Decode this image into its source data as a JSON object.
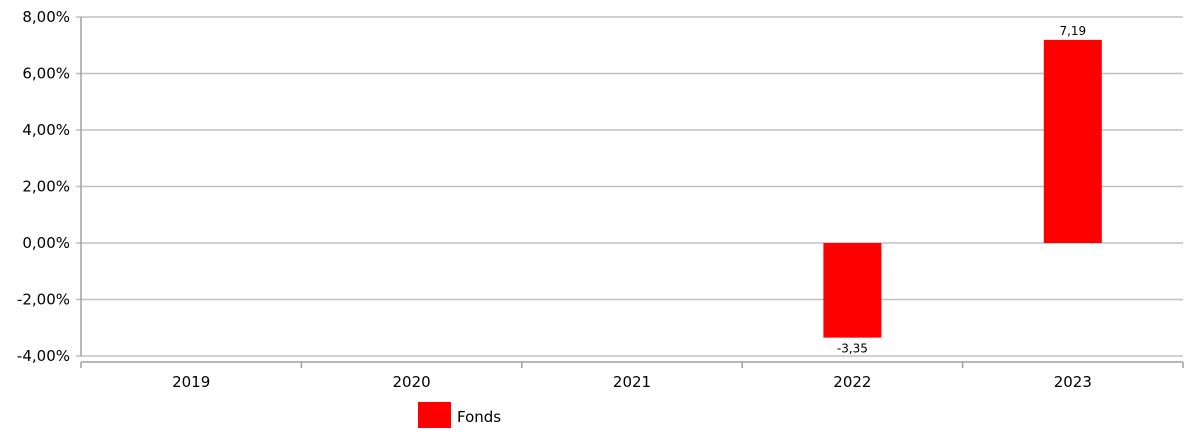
{
  "chart_data": {
    "type": "bar",
    "categories": [
      "2019",
      "2020",
      "2021",
      "2022",
      "2023"
    ],
    "series": [
      {
        "name": "Fonds",
        "values": [
          null,
          null,
          null,
          -3.35,
          7.19
        ],
        "data_labels": [
          "",
          "",
          "",
          "-3,35",
          "7,19"
        ],
        "color": "#ff0000"
      }
    ],
    "ylim": [
      -4,
      8
    ],
    "yticks": [
      8,
      6,
      4,
      2,
      0,
      -2,
      -4
    ],
    "ytick_labels": [
      "8,00%",
      "6,00%",
      "4,00%",
      "2,00%",
      "0,00%",
      "-2,00%",
      "-4,00%"
    ],
    "grid": true,
    "legend": {
      "position": "bottom-left",
      "entries": [
        "Fonds"
      ]
    },
    "colors": {
      "bar": "#ff0000",
      "grid": "#c0c0c0",
      "axis": "#a0a0a0"
    }
  }
}
